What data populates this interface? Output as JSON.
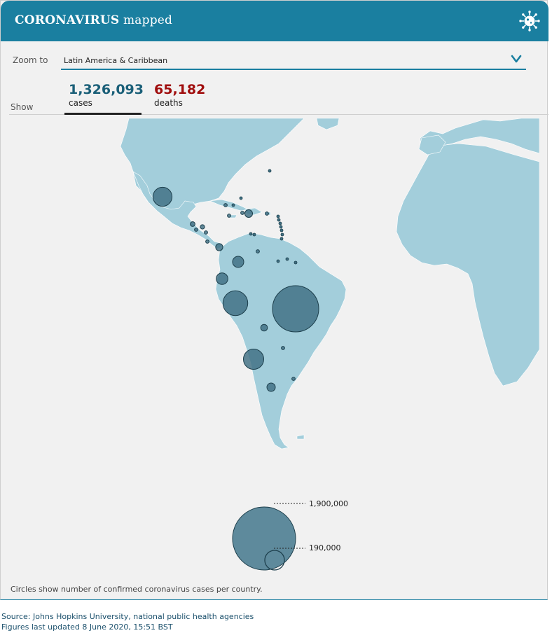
{
  "header": {
    "title_bold": "CORONAVIRUS",
    "title_rest": "mapped",
    "icon": "virus-icon"
  },
  "zoom": {
    "label": "Zoom to",
    "value": "Latin America & Caribbean",
    "icon": "chevron-down-icon"
  },
  "show": {
    "label": "Show"
  },
  "stats": {
    "cases": {
      "value": "1,326,093",
      "label": "cases"
    },
    "deaths": {
      "value": "65,182",
      "label": "deaths"
    }
  },
  "legend": {
    "large_label": "1,900,000",
    "small_label": "190,000"
  },
  "note": "Circles show number of confirmed coronavirus cases per country.",
  "source": {
    "line1": "Source: Johns Hopkins University, national public health agencies",
    "line2": "Figures last updated 8 June 2020, 15:51 BST"
  },
  "colors": {
    "header": "#1a7fa0",
    "land": "#a3cedb",
    "circle": "#3f6f82",
    "cases": "#1a5f78",
    "deaths": "#a00d0d"
  },
  "map_bubbles": [
    {
      "country": "Brazil",
      "cases": 691758
    },
    {
      "country": "Peru",
      "cases": 199696
    },
    {
      "country": "Chile",
      "cases": 134150
    },
    {
      "country": "Mexico",
      "cases": 117103
    },
    {
      "country": "Ecuador",
      "cases": 43378
    },
    {
      "country": "Colombia",
      "cases": 40719
    },
    {
      "country": "Argentina",
      "cases": 22794
    },
    {
      "country": "Dominican Republic",
      "cases": 19195
    },
    {
      "country": "Bolivia",
      "cases": 14644
    },
    {
      "country": "Panama",
      "cases": 16425
    },
    {
      "country": "Honduras",
      "cases": 6155
    },
    {
      "country": "Guatemala",
      "cases": 7502
    },
    {
      "country": "El Salvador",
      "cases": 2934
    },
    {
      "country": "Venezuela",
      "cases": 2377
    },
    {
      "country": "Cuba",
      "cases": 2173
    },
    {
      "country": "Haiti",
      "cases": 3334
    },
    {
      "country": "Costa Rica",
      "cases": 1318
    },
    {
      "country": "Paraguay",
      "cases": 1135
    },
    {
      "country": "Uruguay",
      "cases": 845
    },
    {
      "country": "Puerto Rico",
      "cases": 3324
    },
    {
      "country": "Jamaica",
      "cases": 591
    },
    {
      "country": "Nicaragua",
      "cases": 1118
    }
  ]
}
